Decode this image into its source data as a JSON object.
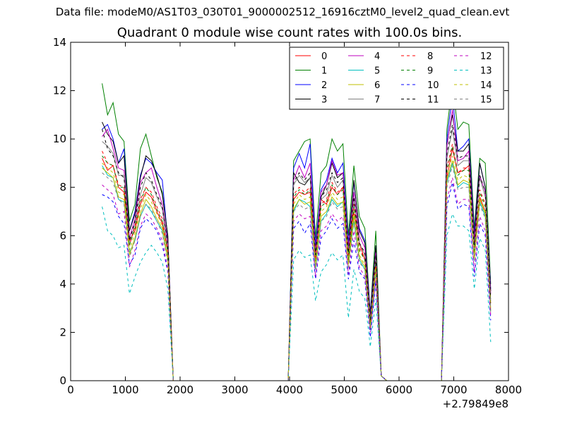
{
  "header": {
    "data_file": "Data file: modeM0/AS1T03_030T01_9000002512_16916cztM0_level2_quad_clean.evt"
  },
  "chart_data": {
    "type": "line",
    "title": "Quadrant 0 module wise count rates with 100.0s bins.",
    "xlabel": "",
    "ylabel": "",
    "xlim": [
      0,
      8000
    ],
    "ylim": [
      0,
      14
    ],
    "x_offset_label": "+2.79849e8",
    "x_ticks": [
      0,
      1000,
      2000,
      3000,
      4000,
      5000,
      6000,
      7000,
      8000
    ],
    "y_ticks": [
      0,
      2,
      4,
      6,
      8,
      10,
      12,
      14
    ],
    "grid": false,
    "legend": {
      "position": "top-right",
      "columns": 4
    },
    "x": [
      575,
      675,
      775,
      875,
      975,
      1075,
      1175,
      1275,
      1375,
      1475,
      1575,
      1675,
      1775,
      1875,
      1975,
      3975,
      4075,
      4175,
      4275,
      4375,
      4475,
      4575,
      4675,
      4775,
      4875,
      4975,
      5075,
      5175,
      5275,
      5375,
      5475,
      5575,
      5675,
      5775,
      5875,
      6775,
      6875,
      6975,
      7075,
      7175,
      7275,
      7375,
      7475,
      7575,
      7675
    ],
    "series": [
      {
        "name": "0",
        "color": "#ff0000",
        "dash": "solid",
        "values": [
          9.2,
          8.7,
          8.9,
          8.0,
          7.8,
          5.8,
          6.2,
          7.3,
          7.8,
          7.6,
          7.0,
          6.5,
          5.4,
          0,
          0,
          0,
          7.5,
          7.8,
          7.7,
          7.8,
          5.2,
          7.5,
          7.3,
          8.0,
          7.7,
          8.0,
          5.2,
          7.0,
          5.7,
          5.0,
          2.4,
          4.8,
          0.2,
          0,
          0,
          0,
          8.4,
          9.6,
          8.6,
          8.7,
          8.9,
          5.5,
          7.6,
          7.0,
          3.2
        ]
      },
      {
        "name": "1",
        "color": "#008000",
        "dash": "solid",
        "values": [
          12.3,
          11.0,
          11.5,
          10.2,
          9.9,
          6.6,
          7.3,
          9.6,
          10.2,
          9.3,
          8.4,
          7.8,
          6.0,
          0,
          0,
          0,
          9.1,
          9.5,
          9.9,
          10.0,
          5.9,
          8.6,
          8.9,
          10.0,
          9.5,
          9.8,
          6.0,
          8.9,
          6.8,
          6.3,
          2.8,
          6.2,
          0.2,
          0,
          0,
          0,
          10.4,
          12.3,
          10.4,
          10.7,
          10.6,
          6.3,
          9.2,
          9.0,
          4.0
        ]
      },
      {
        "name": "2",
        "color": "#0000ff",
        "dash": "solid",
        "values": [
          10.4,
          10.6,
          10.0,
          9.0,
          9.6,
          6.2,
          7.0,
          8.5,
          9.2,
          9.0,
          8.6,
          8.3,
          5.8,
          0,
          0,
          0,
          8.8,
          9.4,
          8.8,
          9.8,
          5.6,
          7.9,
          8.3,
          9.2,
          8.6,
          9.0,
          5.7,
          8.2,
          6.3,
          5.8,
          2.8,
          5.6,
          0.2,
          0,
          0,
          0,
          10.0,
          11.8,
          9.5,
          9.7,
          10.0,
          6.1,
          9.0,
          8.0,
          3.8
        ]
      },
      {
        "name": "3",
        "color": "#000000",
        "dash": "solid",
        "values": [
          10.7,
          10.2,
          9.9,
          9.0,
          9.3,
          6.2,
          6.9,
          8.4,
          9.3,
          9.1,
          8.5,
          7.7,
          6.0,
          0,
          0,
          0,
          8.6,
          8.2,
          8.1,
          8.4,
          5.4,
          7.6,
          8.1,
          9.0,
          8.4,
          8.6,
          5.5,
          8.3,
          6.2,
          5.7,
          2.7,
          5.6,
          0.2,
          0,
          0,
          0,
          9.8,
          11.0,
          9.5,
          9.5,
          9.8,
          5.9,
          9.0,
          8.0,
          3.7
        ]
      },
      {
        "name": "4",
        "color": "#bf00bf",
        "dash": "solid",
        "values": [
          10.1,
          10.4,
          9.6,
          8.8,
          8.7,
          5.9,
          6.7,
          8.2,
          8.6,
          8.8,
          8.0,
          7.3,
          5.7,
          0,
          0,
          0,
          8.3,
          8.9,
          8.4,
          9.0,
          5.3,
          7.8,
          8.1,
          9.1,
          8.5,
          8.6,
          5.5,
          7.8,
          6.0,
          5.5,
          2.6,
          5.3,
          0.2,
          0,
          0,
          0,
          9.7,
          11.2,
          9.1,
          9.2,
          9.5,
          5.8,
          8.5,
          7.8,
          3.6
        ]
      },
      {
        "name": "5",
        "color": "#00bfbf",
        "dash": "solid",
        "values": [
          8.9,
          8.5,
          8.4,
          7.5,
          7.4,
          5.3,
          5.8,
          6.8,
          7.3,
          7.0,
          6.6,
          6.2,
          5.0,
          0,
          0,
          0,
          7.0,
          7.5,
          7.4,
          7.2,
          4.6,
          6.6,
          6.9,
          7.5,
          7.2,
          7.4,
          4.8,
          6.6,
          5.0,
          4.6,
          2.1,
          4.6,
          0.2,
          0,
          0,
          0,
          8.2,
          9.0,
          8.0,
          8.2,
          8.1,
          5.0,
          7.4,
          6.8,
          2.9
        ]
      },
      {
        "name": "6",
        "color": "#bfbf00",
        "dash": "solid",
        "values": [
          8.8,
          8.6,
          8.4,
          7.6,
          7.5,
          5.2,
          5.9,
          6.9,
          7.5,
          7.2,
          6.7,
          6.3,
          5.0,
          0,
          0,
          0,
          7.1,
          7.5,
          7.3,
          7.4,
          4.7,
          6.8,
          7.0,
          7.6,
          7.3,
          7.4,
          4.8,
          6.8,
          5.1,
          4.7,
          2.2,
          4.6,
          0.2,
          0,
          0,
          0,
          8.3,
          9.1,
          8.1,
          8.3,
          8.2,
          5.0,
          7.5,
          6.9,
          2.9
        ]
      },
      {
        "name": "7",
        "color": "#808080",
        "dash": "solid",
        "values": [
          9.9,
          9.7,
          9.4,
          8.5,
          8.5,
          5.6,
          6.5,
          7.7,
          8.4,
          8.2,
          7.6,
          7.1,
          5.5,
          0,
          0,
          0,
          8.1,
          8.5,
          8.2,
          8.4,
          5.1,
          7.5,
          7.7,
          8.5,
          8.0,
          8.3,
          5.2,
          7.5,
          5.7,
          5.2,
          2.5,
          5.1,
          0.2,
          0,
          0,
          0,
          9.2,
          10.4,
          8.9,
          9.1,
          9.1,
          5.5,
          8.4,
          7.6,
          3.3
        ]
      },
      {
        "name": "8",
        "color": "#ff0000",
        "dash": "dashed",
        "values": [
          9.5,
          9.0,
          8.9,
          8.1,
          8.0,
          5.6,
          6.4,
          7.5,
          8.0,
          7.8,
          7.2,
          6.7,
          5.3,
          0,
          0,
          0,
          7.7,
          8.0,
          7.8,
          8.0,
          5.0,
          7.3,
          7.5,
          8.2,
          7.8,
          8.0,
          5.0,
          7.3,
          5.5,
          5.0,
          2.4,
          4.9,
          0.2,
          0,
          0,
          0,
          8.8,
          9.8,
          8.6,
          8.8,
          8.8,
          5.3,
          7.9,
          7.3,
          3.1
        ]
      },
      {
        "name": "9",
        "color": "#008000",
        "dash": "dashed",
        "values": [
          9.3,
          9.0,
          8.9,
          8.0,
          8.0,
          5.6,
          6.3,
          7.4,
          8.0,
          7.7,
          7.1,
          6.6,
          5.3,
          0,
          0,
          0,
          7.6,
          7.9,
          7.7,
          7.9,
          4.9,
          7.2,
          7.4,
          8.1,
          7.7,
          7.9,
          5.0,
          7.2,
          5.4,
          5.0,
          2.3,
          4.9,
          0.2,
          0,
          0,
          0,
          8.7,
          9.7,
          8.5,
          8.7,
          8.7,
          5.3,
          7.8,
          7.2,
          3.1
        ]
      },
      {
        "name": "10",
        "color": "#0000ff",
        "dash": "dashed",
        "values": [
          7.7,
          7.6,
          7.4,
          6.8,
          6.5,
          4.8,
          5.2,
          6.3,
          6.7,
          6.5,
          6.2,
          5.6,
          4.5,
          0,
          0,
          0,
          6.3,
          6.6,
          6.1,
          6.5,
          4.2,
          5.9,
          6.2,
          6.7,
          6.3,
          6.5,
          4.2,
          5.8,
          4.5,
          4.2,
          1.8,
          4.1,
          0.2,
          0,
          0,
          0,
          7.2,
          8.2,
          7.1,
          7.3,
          7.2,
          4.3,
          6.5,
          6.0,
          2.5
        ]
      },
      {
        "name": "11",
        "color": "#000000",
        "dash": "dashed",
        "values": [
          10.4,
          9.6,
          9.3,
          8.6,
          8.4,
          5.8,
          6.6,
          8.0,
          8.6,
          8.3,
          7.7,
          7.2,
          5.6,
          0,
          0,
          0,
          8.2,
          8.6,
          8.3,
          8.6,
          5.2,
          7.6,
          7.9,
          8.6,
          8.2,
          8.4,
          5.3,
          7.6,
          5.7,
          5.3,
          2.5,
          5.2,
          0.2,
          0,
          0,
          0,
          9.4,
          10.6,
          9.2,
          9.3,
          9.3,
          5.6,
          8.5,
          7.8,
          3.4
        ]
      },
      {
        "name": "12",
        "color": "#bf00bf",
        "dash": "dashed",
        "values": [
          8.1,
          7.9,
          7.7,
          6.9,
          7.0,
          4.7,
          5.4,
          6.4,
          6.9,
          6.7,
          6.3,
          5.8,
          4.6,
          0,
          0,
          0,
          6.6,
          6.9,
          6.7,
          6.8,
          4.3,
          6.2,
          6.4,
          6.9,
          6.6,
          6.8,
          4.4,
          6.2,
          4.7,
          4.3,
          2.0,
          4.2,
          0.2,
          0,
          0,
          0,
          7.5,
          8.4,
          7.3,
          7.5,
          7.5,
          4.5,
          6.8,
          6.2,
          2.7
        ]
      },
      {
        "name": "13",
        "color": "#00bfbf",
        "dash": "dashed",
        "values": [
          7.2,
          6.2,
          6.0,
          5.5,
          5.6,
          3.6,
          4.3,
          4.9,
          5.3,
          5.6,
          5.3,
          4.9,
          3.8,
          0,
          0,
          0,
          5.0,
          5.4,
          5.1,
          5.2,
          3.3,
          4.5,
          4.8,
          5.3,
          5.0,
          5.2,
          2.6,
          4.6,
          3.7,
          3.4,
          1.4,
          3.4,
          0.2,
          0,
          0,
          0,
          6.0,
          6.9,
          6.4,
          6.4,
          6.2,
          3.8,
          5.9,
          5.4,
          1.6
        ]
      },
      {
        "name": "14",
        "color": "#bfbf00",
        "dash": "dashed",
        "values": [
          9.0,
          8.8,
          8.6,
          7.8,
          7.7,
          5.4,
          6.1,
          7.1,
          7.7,
          7.4,
          6.9,
          6.4,
          5.1,
          0,
          0,
          0,
          7.3,
          7.7,
          7.5,
          7.6,
          4.8,
          7.0,
          7.2,
          7.8,
          7.5,
          7.6,
          4.9,
          7.0,
          5.2,
          4.8,
          2.2,
          4.7,
          0.2,
          0,
          0,
          0,
          8.5,
          9.3,
          8.3,
          8.5,
          8.4,
          5.1,
          7.7,
          7.0,
          3.0
        ]
      },
      {
        "name": "15",
        "color": "#808080",
        "dash": "dashed",
        "values": [
          8.6,
          8.4,
          8.2,
          7.5,
          7.3,
          5.1,
          5.8,
          6.8,
          7.3,
          7.1,
          6.6,
          6.1,
          4.9,
          0,
          0,
          0,
          7.0,
          7.3,
          7.1,
          7.2,
          4.6,
          6.6,
          6.8,
          7.4,
          7.1,
          7.2,
          4.6,
          6.6,
          4.9,
          4.6,
          2.1,
          4.5,
          0.2,
          0,
          0,
          0,
          8.0,
          8.9,
          7.9,
          8.0,
          8.0,
          4.9,
          7.3,
          6.7,
          2.8
        ]
      }
    ]
  }
}
